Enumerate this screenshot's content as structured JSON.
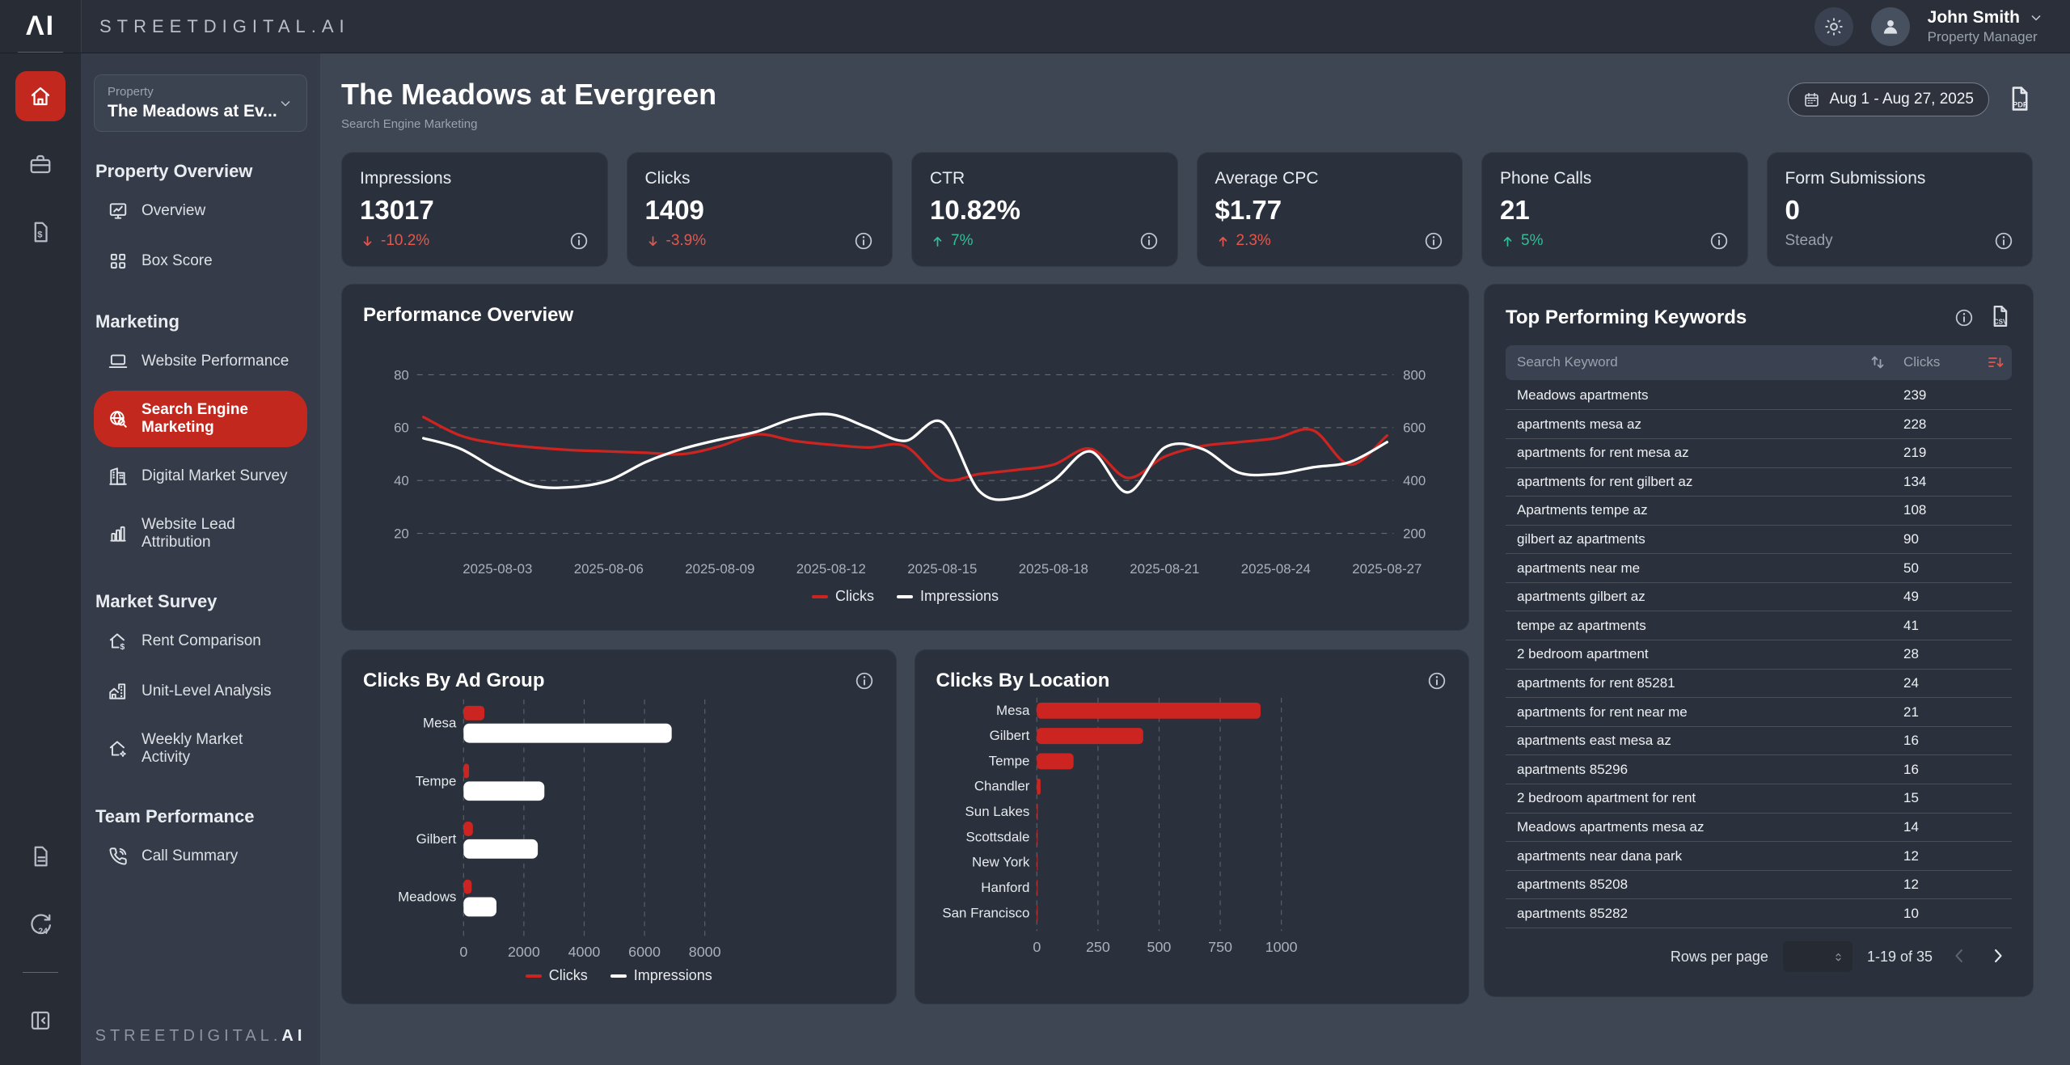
{
  "brand": {
    "logo_text": "ΛI",
    "topbar_name": "STREETDIGITAL.AI",
    "sidebar_name_prefix": "STREETDIGITAL.",
    "sidebar_name_suffix": "AI"
  },
  "topbar": {
    "theme_icon": "sun-icon",
    "avatar_icon": "user-icon",
    "user_name": "John Smith",
    "user_role": "Property Manager"
  },
  "rail": {
    "top_icons": [
      "home-icon",
      "briefcase-icon",
      "invoice-dollar-icon"
    ],
    "bottom_icons": [
      "document-icon",
      "sync-24-icon"
    ],
    "footer_icons": [
      "collapse-sidebar-icon"
    ]
  },
  "sidebar": {
    "property_label": "Property",
    "property_value": "The Meadows at Ev...",
    "sections": [
      {
        "heading": "Property Overview",
        "items": [
          {
            "label": "Overview",
            "icon": "overview-icon",
            "active": false
          },
          {
            "label": "Box Score",
            "icon": "box-score-icon",
            "active": false
          }
        ]
      },
      {
        "heading": "Marketing",
        "items": [
          {
            "label": "Website Performance",
            "icon": "website-performance-icon",
            "active": false
          },
          {
            "label": "Search Engine Marketing",
            "icon": "search-engine-marketing-icon",
            "active": true
          },
          {
            "label": "Digital Market Survey",
            "icon": "digital-market-survey-icon",
            "active": false
          },
          {
            "label": "Website Lead Attribution",
            "icon": "website-lead-attribution-icon",
            "active": false
          }
        ]
      },
      {
        "heading": "Market Survey",
        "items": [
          {
            "label": "Rent Comparison",
            "icon": "rent-comparison-icon",
            "active": false
          },
          {
            "label": "Unit-Level Analysis",
            "icon": "unit-level-analysis-icon",
            "active": false
          },
          {
            "label": "Weekly Market Activity",
            "icon": "weekly-market-activity-icon",
            "active": false
          }
        ]
      },
      {
        "heading": "Team Performance",
        "items": [
          {
            "label": "Call Summary",
            "icon": "call-summary-icon",
            "active": false
          }
        ]
      }
    ]
  },
  "header": {
    "title": "The Meadows at Evergreen",
    "subtitle": "Search Engine Marketing",
    "date_range": "Aug 1 - Aug 27, 2025",
    "calendar_icon": "calendar-icon",
    "export_icon": "file-pdf-icon"
  },
  "kpis": [
    {
      "label": "Impressions",
      "value": "13017",
      "delta": "-10.2%",
      "direction": "down",
      "tone": "neg"
    },
    {
      "label": "Clicks",
      "value": "1409",
      "delta": "-3.9%",
      "direction": "down",
      "tone": "neg"
    },
    {
      "label": "CTR",
      "value": "10.82%",
      "delta": "7%",
      "direction": "up",
      "tone": "pos"
    },
    {
      "label": "Average CPC",
      "value": "$1.77",
      "delta": "2.3%",
      "direction": "up",
      "tone": "neg"
    },
    {
      "label": "Phone Calls",
      "value": "21",
      "delta": "5%",
      "direction": "up",
      "tone": "pos"
    },
    {
      "label": "Form Submissions",
      "value": "0",
      "delta": "Steady",
      "direction": "none",
      "tone": "neu"
    }
  ],
  "chart_data": [
    {
      "type": "line",
      "title": "Performance Overview",
      "x": [
        "2025-08-01",
        "2025-08-02",
        "2025-08-03",
        "2025-08-04",
        "2025-08-05",
        "2025-08-06",
        "2025-08-07",
        "2025-08-08",
        "2025-08-09",
        "2025-08-10",
        "2025-08-11",
        "2025-08-12",
        "2025-08-13",
        "2025-08-14",
        "2025-08-15",
        "2025-08-16",
        "2025-08-17",
        "2025-08-18",
        "2025-08-19",
        "2025-08-20",
        "2025-08-21",
        "2025-08-22",
        "2025-08-23",
        "2025-08-24",
        "2025-08-25",
        "2025-08-26",
        "2025-08-27"
      ],
      "x_tick_labels": [
        "2025-08-03",
        "2025-08-06",
        "2025-08-09",
        "2025-08-12",
        "2025-08-15",
        "2025-08-18",
        "2025-08-21",
        "2025-08-24",
        "2025-08-27"
      ],
      "left_axis": {
        "ticks": [
          80,
          60,
          40,
          20
        ],
        "range": [
          0,
          90
        ]
      },
      "right_axis": {
        "ticks": [
          800,
          600,
          400,
          200
        ],
        "range": [
          0,
          900
        ]
      },
      "grid": "dashed-horizontal",
      "legend_position": "bottom",
      "series": [
        {
          "name": "Clicks",
          "axis": "left",
          "color": "#cc2420",
          "values": [
            64,
            57,
            54,
            52.5,
            51.5,
            51,
            50.5,
            50,
            53,
            57.5,
            55,
            53.5,
            52.5,
            53,
            40.5,
            42.5,
            44,
            46,
            52,
            41,
            49,
            53,
            54.5,
            56,
            59,
            46,
            57
          ]
        },
        {
          "name": "Impressions",
          "axis": "right",
          "color": "#ffffff",
          "values": [
            560,
            520,
            440,
            380,
            375,
            400,
            470,
            520,
            555,
            585,
            635,
            650,
            600,
            550,
            620,
            360,
            335,
            400,
            510,
            355,
            525,
            520,
            430,
            425,
            450,
            470,
            545
          ]
        }
      ]
    },
    {
      "type": "bar",
      "title": "Clicks By Ad Group",
      "orientation": "horizontal",
      "categories": [
        "Mesa",
        "Tempe",
        "Gilbert",
        "Meadows"
      ],
      "xlim": [
        0,
        8000
      ],
      "x_ticks": [
        0,
        2000,
        4000,
        6000,
        8000
      ],
      "legend_position": "bottom",
      "series": [
        {
          "name": "Clicks",
          "color": "#cc2420",
          "values": [
            690,
            180,
            310,
            270
          ]
        },
        {
          "name": "Impressions",
          "color": "#ffffff",
          "values": [
            6900,
            2680,
            2460,
            1090
          ]
        }
      ]
    },
    {
      "type": "bar",
      "title": "Clicks By Location",
      "orientation": "horizontal",
      "categories": [
        "Mesa",
        "Gilbert",
        "Tempe",
        "Chandler",
        "Sun Lakes",
        "Scottsdale",
        "New York",
        "Hanford",
        "San Francisco"
      ],
      "xlim": [
        0,
        1000
      ],
      "x_ticks": [
        0,
        250,
        500,
        750,
        1000
      ],
      "legend_position": "none",
      "series": [
        {
          "name": "Clicks",
          "color": "#cc2420",
          "values": [
            915,
            435,
            150,
            15,
            4,
            2,
            2,
            1,
            1
          ]
        }
      ]
    }
  ],
  "keywords": {
    "title": "Top Performing Keywords",
    "info_icon": "info-icon",
    "export_icon": "file-csv-icon",
    "columns": [
      "Search Keyword",
      "Clicks"
    ],
    "rows": [
      [
        "Meadows apartments",
        239
      ],
      [
        "apartments mesa az",
        228
      ],
      [
        "apartments for rent mesa az",
        219
      ],
      [
        "apartments for rent gilbert az",
        134
      ],
      [
        "Apartments tempe az",
        108
      ],
      [
        "gilbert az apartments",
        90
      ],
      [
        "apartments near me",
        50
      ],
      [
        "apartments gilbert az",
        49
      ],
      [
        "tempe az apartments",
        41
      ],
      [
        "2 bedroom apartment",
        28
      ],
      [
        "apartments for rent 85281",
        24
      ],
      [
        "apartments for rent near me",
        21
      ],
      [
        "apartments east mesa az",
        16
      ],
      [
        "apartments 85296",
        16
      ],
      [
        "2 bedroom apartment for rent",
        15
      ],
      [
        "Meadows apartments mesa az",
        14
      ],
      [
        "apartments near dana park",
        12
      ],
      [
        "apartments 85208",
        12
      ],
      [
        "apartments 85282",
        10
      ]
    ],
    "pagination": {
      "rows_per_page_label": "Rows per page",
      "range_text": "1-19 of 35"
    }
  },
  "colors": {
    "accent_red": "#c2281e",
    "chart_red": "#cc2420",
    "chart_white": "#ffffff",
    "positive_green": "#2fbe96",
    "negative_red": "#e2574d",
    "muted_text": "#9aa2ae"
  }
}
